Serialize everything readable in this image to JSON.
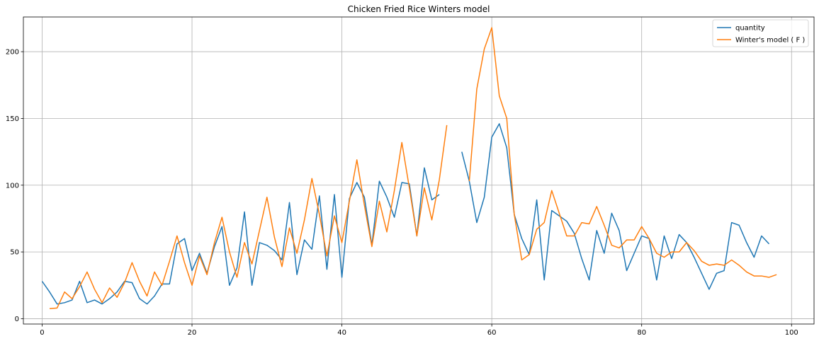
{
  "chart_data": {
    "type": "line",
    "title": "Chicken Fried Rice Winters model",
    "xlabel": "",
    "ylabel": "",
    "xlim": [
      -2.5,
      103
    ],
    "ylim": [
      -4,
      226
    ],
    "xticks": [
      0,
      20,
      40,
      60,
      80,
      100
    ],
    "yticks": [
      0,
      50,
      100,
      150,
      200
    ],
    "grid": true,
    "legend_position": "upper right",
    "series": [
      {
        "name": "quantity",
        "color": "#1f77b4",
        "x": [
          0,
          1,
          2,
          3,
          4,
          5,
          6,
          7,
          8,
          9,
          10,
          11,
          12,
          13,
          14,
          15,
          16,
          17,
          18,
          19,
          20,
          21,
          22,
          23,
          24,
          25,
          26,
          27,
          28,
          29,
          30,
          31,
          32,
          33,
          34,
          35,
          36,
          37,
          38,
          39,
          40,
          41,
          42,
          43,
          44,
          45,
          46,
          47,
          48,
          49,
          50,
          51,
          52,
          53,
          54,
          55,
          56,
          57,
          58,
          59,
          60,
          61,
          62,
          63,
          64,
          65,
          66,
          67,
          68,
          69,
          70,
          71,
          72,
          73,
          74,
          75,
          76,
          77,
          78,
          79,
          80,
          81,
          82,
          83,
          84,
          85,
          86,
          87,
          88,
          89,
          90,
          91,
          92,
          93,
          94,
          95,
          96,
          97
        ],
        "y": [
          28,
          20,
          11,
          12,
          14,
          28,
          12,
          14,
          11,
          15,
          20,
          28,
          27,
          15,
          11,
          17,
          26,
          26,
          56,
          60,
          36,
          49,
          34,
          54,
          69,
          25,
          38,
          80,
          25,
          57,
          55,
          51,
          44,
          87,
          33,
          59,
          52,
          92,
          37,
          93,
          31,
          90,
          102,
          91,
          55,
          103,
          91,
          76,
          102,
          101,
          62,
          113,
          89,
          93,
          null,
          null,
          125,
          103,
          72,
          91,
          136,
          146,
          128,
          78,
          60,
          48,
          89,
          29,
          81,
          77,
          73,
          64,
          45,
          29,
          66,
          49,
          79,
          66,
          36,
          49,
          62,
          60,
          29,
          62,
          45,
          63,
          57,
          46,
          34,
          22,
          34,
          36,
          72,
          70,
          57,
          46,
          62,
          56
        ]
      },
      {
        "name": "Winter's model ( F )",
        "color": "#ff7f0e",
        "x": [
          1,
          2,
          3,
          4,
          5,
          6,
          7,
          8,
          9,
          10,
          11,
          12,
          13,
          14,
          15,
          16,
          17,
          18,
          19,
          20,
          21,
          22,
          23,
          24,
          25,
          26,
          27,
          28,
          29,
          30,
          31,
          32,
          33,
          34,
          35,
          36,
          37,
          38,
          39,
          40,
          41,
          42,
          43,
          44,
          45,
          46,
          47,
          48,
          49,
          50,
          51,
          52,
          53,
          54,
          55,
          56,
          57,
          58,
          59,
          60,
          61,
          62,
          63,
          64,
          65,
          66,
          67,
          68,
          69,
          70,
          71,
          72,
          73,
          74,
          75,
          76,
          77,
          78,
          79,
          80,
          81,
          82,
          83,
          84,
          85,
          86,
          87,
          88,
          89,
          90,
          91,
          92,
          93,
          94,
          95,
          96,
          97,
          98
        ],
        "y": [
          7.5,
          8,
          20,
          15,
          24,
          35,
          22,
          12,
          23,
          16,
          27,
          42,
          28,
          17,
          35,
          25,
          43,
          62,
          42,
          25,
          47,
          33,
          57,
          76,
          50,
          31,
          57,
          41,
          66,
          91,
          61,
          39,
          68,
          49,
          74,
          105,
          78,
          47,
          77,
          57,
          88,
          119,
          85,
          54,
          88,
          65,
          96,
          132,
          98,
          62,
          98,
          74,
          104,
          145,
          null,
          null,
          103,
          172,
          202,
          218,
          167,
          150,
          78,
          44,
          48,
          67,
          72,
          96,
          79,
          62,
          62,
          72,
          71,
          84,
          70,
          55,
          53,
          59,
          59,
          69,
          60,
          49,
          46,
          50,
          50,
          57,
          51,
          43,
          40,
          41,
          40,
          44,
          40,
          35,
          32,
          32,
          31,
          33
        ]
      }
    ]
  }
}
